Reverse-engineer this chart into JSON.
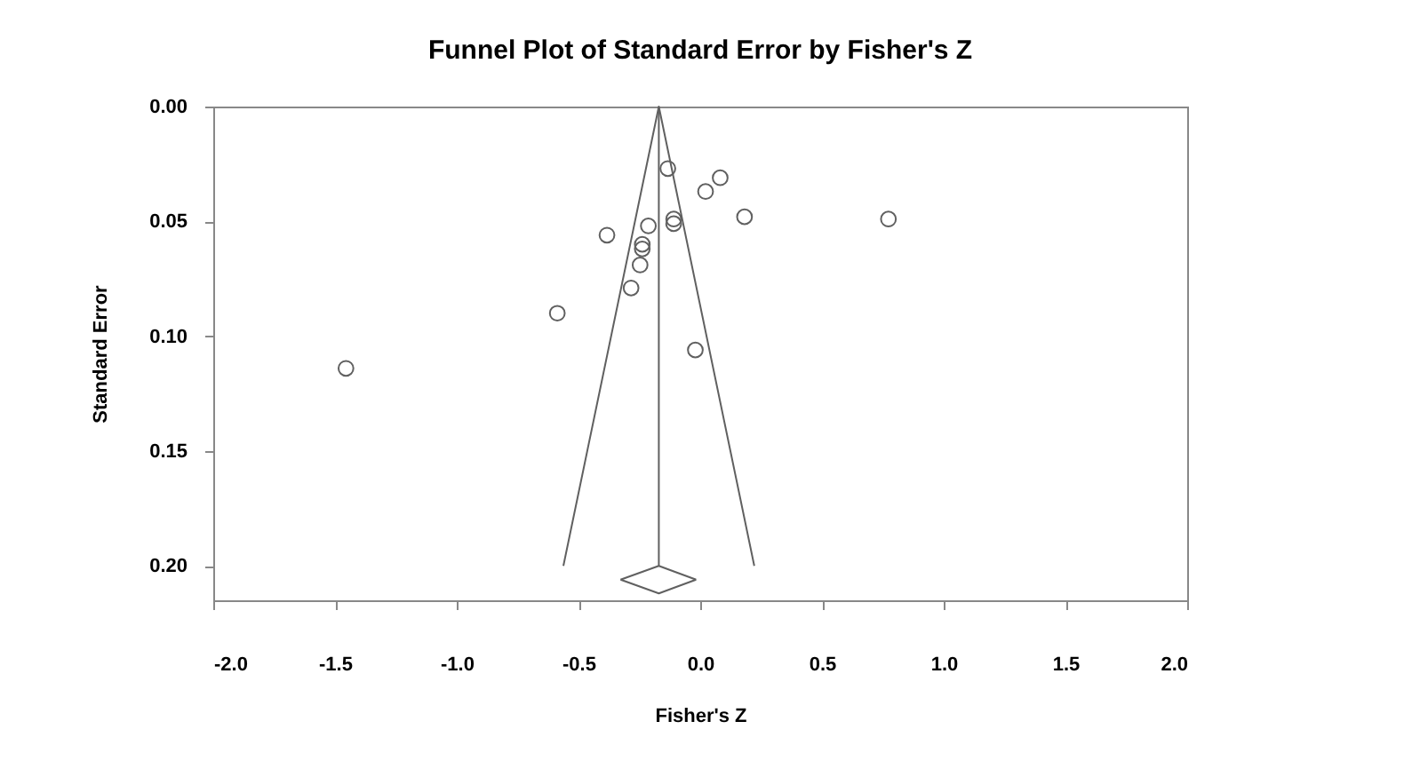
{
  "chart_data": {
    "type": "scatter",
    "title": "Funnel Plot of Standard Error by Fisher's Z",
    "xlabel": "Fisher's Z",
    "ylabel": "Standard Error",
    "xlim": [
      -2.0,
      2.0
    ],
    "xticks": [
      {
        "value": -2,
        "label": "-2.0"
      },
      {
        "value": -1.5,
        "label": "-1.5"
      },
      {
        "value": -1,
        "label": "-1.0"
      },
      {
        "value": -0.5,
        "label": "-0.5"
      },
      {
        "value": 0,
        "label": "0.0"
      },
      {
        "value": 0.5,
        "label": "0.5"
      },
      {
        "value": 1,
        "label": "1.0"
      },
      {
        "value": 1.5,
        "label": "1.5"
      },
      {
        "value": 2,
        "label": "2.0"
      }
    ],
    "ylim": [
      0.215,
      0.0
    ],
    "yticks": [
      {
        "value": 0,
        "label": "0.00"
      },
      {
        "value": 0.05,
        "label": "0.05"
      },
      {
        "value": 0.1,
        "label": "0.10"
      },
      {
        "value": 0.15,
        "label": "0.15"
      },
      {
        "value": 0.2,
        "label": "0.20"
      }
    ],
    "marker": "circle",
    "series": [
      {
        "color": "#606060",
        "x": [
          -0.133,
          0.082,
          0.022,
          0.182,
          0.773,
          -0.109,
          -0.109,
          -0.213,
          -0.383,
          -0.238,
          -0.238,
          -0.247,
          -0.284,
          -0.587,
          -0.02,
          -1.455
        ],
        "values": [
          0.027,
          0.031,
          0.037,
          0.048,
          0.049,
          0.049,
          0.051,
          0.052,
          0.056,
          0.06,
          0.062,
          0.069,
          0.079,
          0.09,
          0.106,
          0.114
        ]
      },
      {
        "type": "line",
        "color": "#606060",
        "marker": "none",
        "line_style": "solid",
        "x": [
          -0.562,
          -0.17,
          0.222
        ],
        "values": [
          0.2,
          0.0,
          0.2
        ]
      },
      {
        "type": "line",
        "color": "#606060",
        "marker": "none",
        "line_style": "solid",
        "x": [
          -0.17,
          -0.17
        ],
        "values": [
          0.0,
          0.2
        ]
      },
      {
        "type": "line",
        "color": "#606060",
        "marker": "none",
        "line_style": "solid",
        "x": [
          -0.327,
          -0.17,
          -0.017
        ],
        "values": [
          0.206,
          0.2,
          0.206
        ]
      },
      {
        "type": "line",
        "color": "#606060",
        "marker": "none",
        "line_style": "solid",
        "x": [
          -0.327,
          -0.17,
          -0.017
        ],
        "values": [
          0.206,
          0.212,
          0.206
        ]
      }
    ]
  }
}
